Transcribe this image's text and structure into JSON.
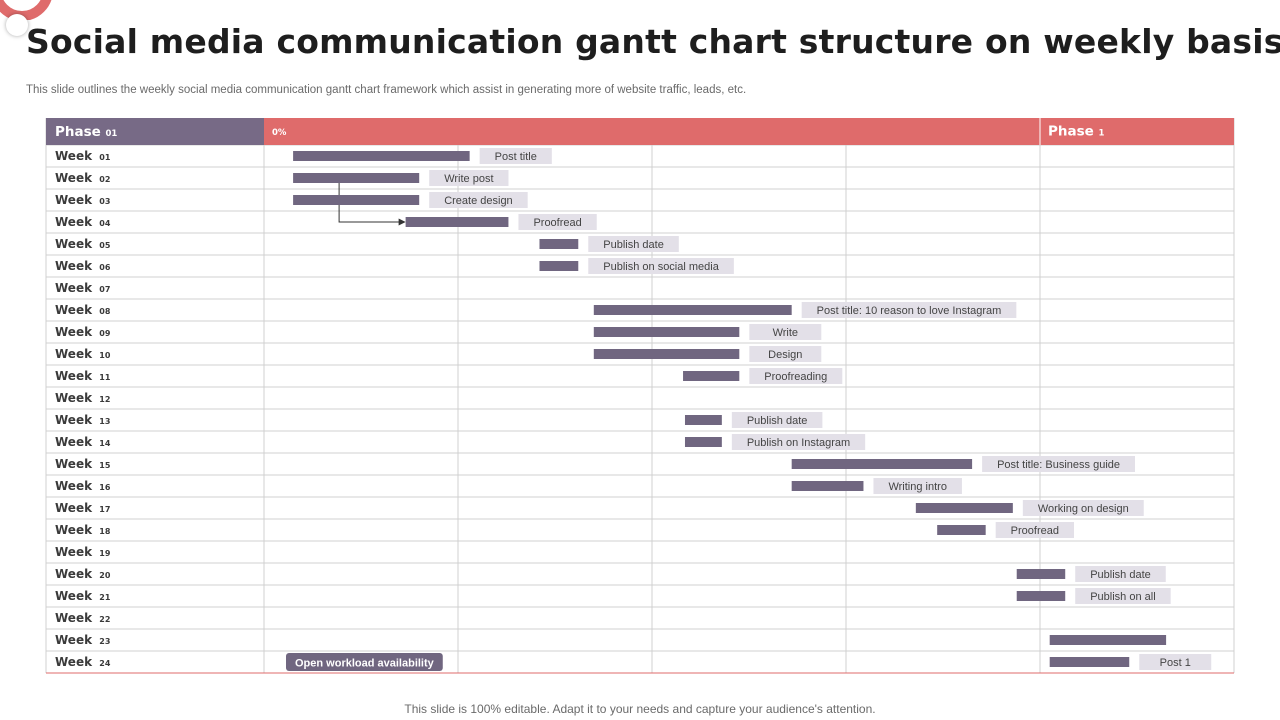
{
  "title": "Social media communication gantt chart structure on weekly basis",
  "subtitle": "This slide outlines the weekly social media communication gantt chart framework which assist in generating more of website traffic, leads, etc.",
  "footer": "This slide is 100% editable. Adapt it to your needs and capture your audience's attention.",
  "colors": {
    "accent": "#df6b6b",
    "phase_left": "#776a86",
    "bar": "#706680",
    "label_bg": "#e3e0e8",
    "grid": "#d0d0d0"
  },
  "chart_data": {
    "type": "gantt",
    "header": {
      "left": {
        "text": "Phase",
        "sub": "01"
      },
      "middle": "0%",
      "right": {
        "text": "Phase",
        "sub": "1"
      }
    },
    "row_label": "Week",
    "weeks": [
      "01",
      "02",
      "03",
      "04",
      "05",
      "06",
      "07",
      "08",
      "09",
      "10",
      "11",
      "12",
      "13",
      "14",
      "15",
      "16",
      "17",
      "18",
      "19",
      "20",
      "21",
      "22",
      "23",
      "24"
    ],
    "time_span": [
      0,
      5
    ],
    "tasks": [
      {
        "week": 1,
        "start": 0.15,
        "end": 1.06,
        "label": "Post title"
      },
      {
        "week": 2,
        "start": 0.15,
        "end": 0.8,
        "label": "Write post"
      },
      {
        "week": 3,
        "start": 0.15,
        "end": 0.8,
        "label": "Create design"
      },
      {
        "week": 4,
        "start": 0.73,
        "end": 1.26,
        "label": "Proofread"
      },
      {
        "week": 5,
        "start": 1.42,
        "end": 1.62,
        "label": "Publish date"
      },
      {
        "week": 6,
        "start": 1.42,
        "end": 1.62,
        "label": "Publish on social media"
      },
      {
        "week": 8,
        "start": 1.7,
        "end": 2.72,
        "label": "Post title: 10 reason to love Instagram"
      },
      {
        "week": 9,
        "start": 1.7,
        "end": 2.45,
        "label": "Write"
      },
      {
        "week": 10,
        "start": 1.7,
        "end": 2.45,
        "label": "Design"
      },
      {
        "week": 11,
        "start": 2.16,
        "end": 2.45,
        "label": "Proofreading"
      },
      {
        "week": 13,
        "start": 2.17,
        "end": 2.36,
        "label": "Publish date"
      },
      {
        "week": 14,
        "start": 2.17,
        "end": 2.36,
        "label": "Publish on Instagram"
      },
      {
        "week": 15,
        "start": 2.72,
        "end": 3.65,
        "label": "Post title: Business guide"
      },
      {
        "week": 16,
        "start": 2.72,
        "end": 3.09,
        "label": "Writing intro"
      },
      {
        "week": 17,
        "start": 3.36,
        "end": 3.86,
        "label": "Working on design"
      },
      {
        "week": 18,
        "start": 3.47,
        "end": 3.72,
        "label": "Proofread"
      },
      {
        "week": 20,
        "start": 3.88,
        "end": 4.13,
        "label": "Publish date"
      },
      {
        "week": 21,
        "start": 3.88,
        "end": 4.13,
        "label": "Publish on all"
      },
      {
        "week": 23,
        "start": 4.05,
        "end": 4.65,
        "label": ""
      },
      {
        "week": 24,
        "start": 4.05,
        "end": 4.46,
        "label": "Post 1"
      }
    ],
    "dependencies": [
      {
        "from_week": 3,
        "to_week": 4
      }
    ],
    "button": {
      "week": 24,
      "label": "Open workload availability"
    }
  }
}
